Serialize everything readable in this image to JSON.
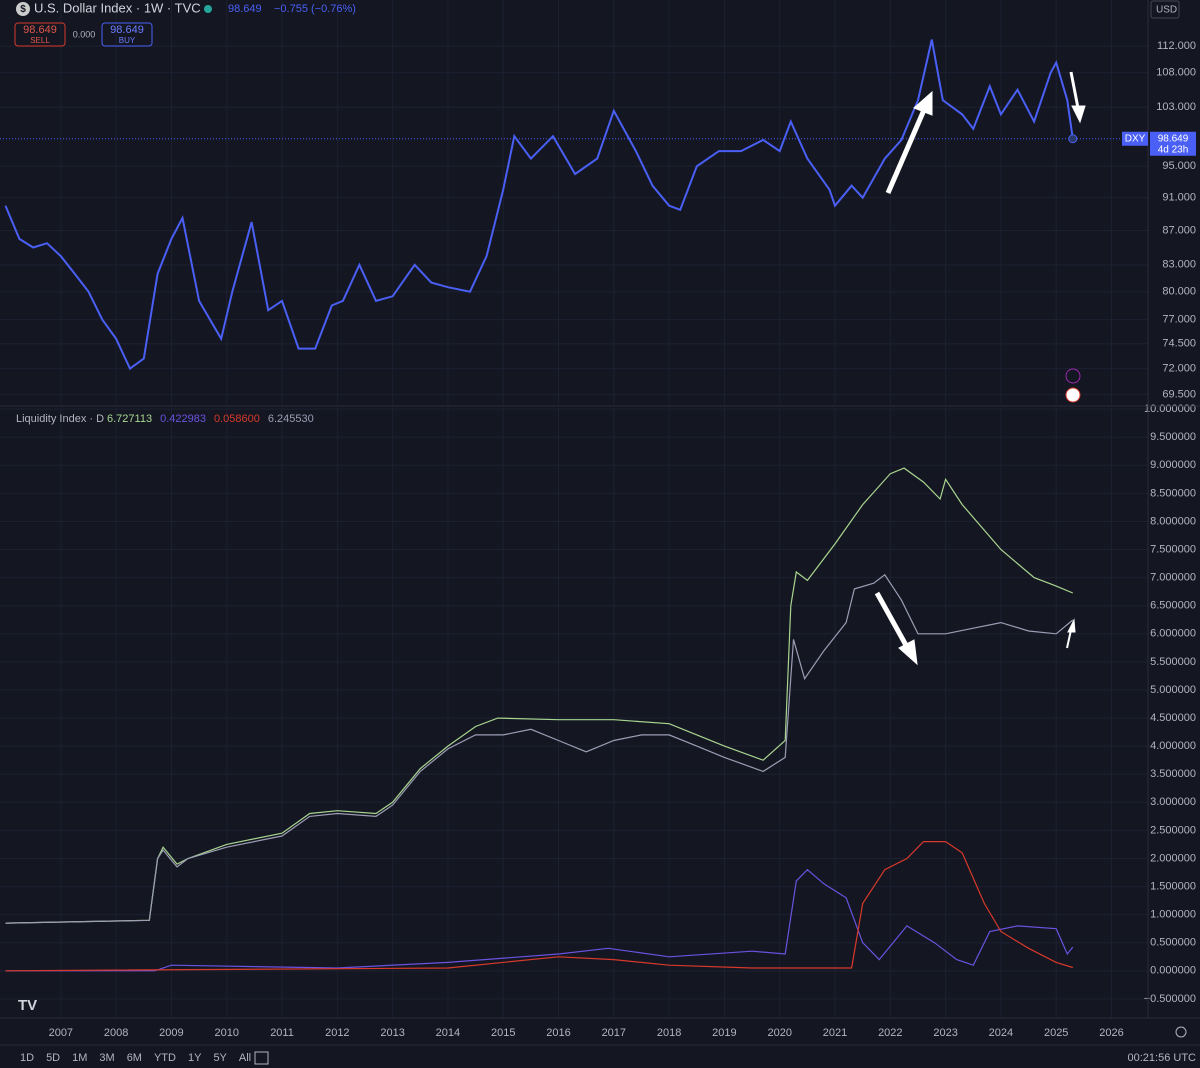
{
  "header": {
    "title": "U.S. Dollar Index · 1W · TVC",
    "price": "98.649",
    "change": "−0.755 (−0.76%)",
    "sell": {
      "price": "98.649",
      "label": "SELL"
    },
    "spread": "0.000",
    "buy": {
      "price": "98.649",
      "label": "BUY"
    },
    "currency": "USD"
  },
  "toolbar": {
    "ranges": [
      "1D",
      "5D",
      "1M",
      "3M",
      "6M",
      "YTD",
      "1Y",
      "5Y",
      "All"
    ],
    "clock": "00:21:56 UTC"
  },
  "chart_data": [
    {
      "type": "line",
      "log_scale": true,
      "grid": true,
      "xlim": [
        2005.9,
        2026.66
      ],
      "ylim": [
        68.5,
        119.3
      ],
      "yticks": [
        {
          "value": 112,
          "label": "112.000"
        },
        {
          "value": 108,
          "label": "108.000"
        },
        {
          "value": 103,
          "label": "103.000"
        },
        {
          "value": 95,
          "label": "95.000"
        },
        {
          "value": 91,
          "label": "91.000"
        },
        {
          "value": 87,
          "label": "87.000"
        },
        {
          "value": 83,
          "label": "83.000"
        },
        {
          "value": 80,
          "label": "80.000"
        },
        {
          "value": 77,
          "label": "77.000"
        },
        {
          "value": 74.5,
          "label": "74.500"
        },
        {
          "value": 72,
          "label": "72.000"
        },
        {
          "value": 69.5,
          "label": "69.500"
        }
      ],
      "price_tag": {
        "symbol": "DXY",
        "price": "98.649",
        "countdown": "4d 23h"
      },
      "series": [
        {
          "name": "DXY",
          "color": "#4a5ff5",
          "x": [
            2006.0,
            2006.25,
            2006.5,
            2006.75,
            2007.0,
            2007.25,
            2007.5,
            2007.75,
            2008.0,
            2008.25,
            2008.5,
            2008.75,
            2009.0,
            2009.2,
            2009.5,
            2009.9,
            2010.1,
            2010.45,
            2010.75,
            2011.0,
            2011.3,
            2011.6,
            2011.9,
            2012.1,
            2012.4,
            2012.7,
            2013.0,
            2013.4,
            2013.7,
            2014.0,
            2014.4,
            2014.7,
            2015.0,
            2015.2,
            2015.5,
            2015.9,
            2016.3,
            2016.7,
            2017.0,
            2017.4,
            2017.7,
            2018.0,
            2018.2,
            2018.5,
            2018.9,
            2019.3,
            2019.7,
            2020.0,
            2020.2,
            2020.5,
            2020.9,
            2021.0,
            2021.3,
            2021.5,
            2021.9,
            2022.2,
            2022.5,
            2022.75,
            2022.95,
            2023.3,
            2023.5,
            2023.8,
            2024.0,
            2024.3,
            2024.6,
            2024.9,
            2025.0,
            2025.2,
            2025.3
          ],
          "values": [
            90,
            86,
            85,
            85.5,
            84,
            82,
            80,
            77,
            75,
            72,
            73,
            82,
            86,
            88.5,
            79,
            75,
            80,
            88,
            78,
            79,
            74,
            74,
            78.5,
            79,
            83,
            79,
            79.5,
            83,
            81,
            80.5,
            80,
            84,
            92,
            99,
            96,
            99,
            94,
            96,
            102.5,
            97,
            92.5,
            90,
            89.5,
            95,
            97,
            97,
            98.5,
            97,
            101,
            96,
            92,
            90,
            92.5,
            91,
            96,
            98.5,
            104,
            113,
            104,
            102,
            100,
            106,
            102,
            105.5,
            101,
            108,
            109.5,
            104,
            98.649
          ]
        }
      ]
    },
    {
      "type": "line",
      "title": "Liquidity Index · D",
      "grid": true,
      "xlim": [
        2005.9,
        2026.66
      ],
      "ylim": [
        -0.84,
        10.02
      ],
      "xticks": [
        2007,
        2008,
        2009,
        2010,
        2011,
        2012,
        2013,
        2014,
        2015,
        2016,
        2017,
        2018,
        2019,
        2020,
        2021,
        2022,
        2023,
        2024,
        2025,
        2026
      ],
      "yticks": [
        {
          "value": 10,
          "label": "10.000000"
        },
        {
          "value": 9.5,
          "label": "9.500000"
        },
        {
          "value": 9,
          "label": "9.000000"
        },
        {
          "value": 8.5,
          "label": "8.500000"
        },
        {
          "value": 8,
          "label": "8.000000"
        },
        {
          "value": 7.5,
          "label": "7.500000"
        },
        {
          "value": 7,
          "label": "7.000000"
        },
        {
          "value": 6.5,
          "label": "6.500000"
        },
        {
          "value": 6,
          "label": "6.000000"
        },
        {
          "value": 5.5,
          "label": "5.500000"
        },
        {
          "value": 5,
          "label": "5.000000"
        },
        {
          "value": 4.5,
          "label": "4.500000"
        },
        {
          "value": 4,
          "label": "4.000000"
        },
        {
          "value": 3.5,
          "label": "3.500000"
        },
        {
          "value": 3,
          "label": "3.000000"
        },
        {
          "value": 2.5,
          "label": "2.500000"
        },
        {
          "value": 2,
          "label": "2.000000"
        },
        {
          "value": 1.5,
          "label": "1.500000"
        },
        {
          "value": 1,
          "label": "1.000000"
        },
        {
          "value": 0.5,
          "label": "0.500000"
        },
        {
          "value": 0,
          "label": "0.000000"
        },
        {
          "value": -0.5,
          "label": "−0.500000"
        }
      ],
      "series": [
        {
          "color": "#a9d58f",
          "last_label": "6.727113",
          "x": [
            2006,
            2008.6,
            2008.75,
            2008.85,
            2009.1,
            2009.3,
            2010,
            2011,
            2011.5,
            2012,
            2012.7,
            2013,
            2013.5,
            2014,
            2014.5,
            2014.9,
            2016,
            2017,
            2018,
            2019,
            2019.7,
            2020.1,
            2020.2,
            2020.3,
            2020.5,
            2021,
            2021.5,
            2022,
            2022.25,
            2022.6,
            2022.9,
            2023,
            2023.3,
            2024,
            2024.6,
            2025,
            2025.3
          ],
          "values": [
            0.85,
            0.9,
            2.0,
            2.2,
            1.9,
            2.0,
            2.25,
            2.45,
            2.8,
            2.85,
            2.8,
            3.0,
            3.6,
            4.0,
            4.35,
            4.5,
            4.47,
            4.47,
            4.4,
            4.0,
            3.75,
            4.1,
            6.5,
            7.1,
            6.95,
            7.6,
            8.3,
            8.85,
            8.95,
            8.7,
            8.4,
            8.75,
            8.3,
            7.5,
            7.0,
            6.85,
            6.727113
          ]
        },
        {
          "color": "#6b52e0",
          "last_label": "0.422983",
          "x": [
            2006,
            2008.7,
            2009,
            2012,
            2014,
            2016,
            2016.9,
            2018,
            2019.5,
            2020.1,
            2020.3,
            2020.5,
            2020.8,
            2021.2,
            2021.5,
            2021.8,
            2022.3,
            2022.8,
            2023.2,
            2023.5,
            2023.8,
            2024.3,
            2025,
            2025.2,
            2025.3
          ],
          "values": [
            0,
            0,
            0.1,
            0.05,
            0.15,
            0.3,
            0.4,
            0.25,
            0.35,
            0.3,
            1.6,
            1.8,
            1.55,
            1.3,
            0.5,
            0.2,
            0.8,
            0.5,
            0.2,
            0.1,
            0.7,
            0.8,
            0.75,
            0.3,
            0.422983
          ]
        },
        {
          "color": "#d8392b",
          "last_label": "0.058600",
          "x": [
            2006,
            2014,
            2016,
            2017,
            2018,
            2019.5,
            2020.5,
            2021.3,
            2021.5,
            2021.9,
            2022.3,
            2022.6,
            2023,
            2023.3,
            2023.7,
            2024,
            2024.5,
            2025,
            2025.3
          ],
          "values": [
            0,
            0.05,
            0.25,
            0.2,
            0.1,
            0.05,
            0.05,
            0.05,
            1.2,
            1.8,
            2.0,
            2.3,
            2.3,
            2.1,
            1.2,
            0.7,
            0.4,
            0.15,
            0.0586
          ]
        },
        {
          "color": "#9c9db4",
          "last_label": "6.245530",
          "x": [
            2006,
            2008.6,
            2008.75,
            2008.85,
            2009.1,
            2009.3,
            2010,
            2011,
            2011.5,
            2012,
            2012.7,
            2013,
            2013.5,
            2014,
            2014.5,
            2015,
            2015.5,
            2016,
            2016.5,
            2017,
            2017.5,
            2018,
            2018.5,
            2019,
            2019.7,
            2020.1,
            2020.25,
            2020.45,
            2020.8,
            2021.2,
            2021.35,
            2021.7,
            2021.9,
            2022.2,
            2022.5,
            2023,
            2023.5,
            2024,
            2024.5,
            2025,
            2025.3
          ],
          "values": [
            0.85,
            0.9,
            2.0,
            2.15,
            1.85,
            2.0,
            2.2,
            2.4,
            2.75,
            2.8,
            2.75,
            2.95,
            3.55,
            3.95,
            4.2,
            4.2,
            4.3,
            4.1,
            3.9,
            4.1,
            4.2,
            4.2,
            4.0,
            3.8,
            3.55,
            3.8,
            5.9,
            5.2,
            5.7,
            6.2,
            6.8,
            6.9,
            7.05,
            6.6,
            6.0,
            6.0,
            6.1,
            6.2,
            6.05,
            6.0,
            6.24553
          ]
        }
      ]
    }
  ]
}
